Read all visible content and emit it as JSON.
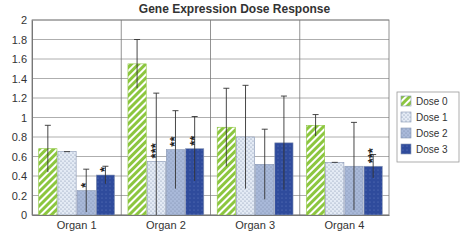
{
  "chart_data": {
    "type": "bar",
    "title": "Gene Expression Dose Response",
    "categories": [
      "Organ 1",
      "Organ 2",
      "Organ 3",
      "Organ 4"
    ],
    "series": [
      {
        "name": "Dose 0",
        "color": "#8cc63f",
        "values": [
          0.68,
          1.55,
          0.9,
          0.92
        ],
        "errors": [
          0.24,
          0.25,
          0.4,
          0.11
        ],
        "significance": [
          null,
          null,
          null,
          null
        ]
      },
      {
        "name": "Dose 1",
        "color": "#e4ebf5",
        "values": [
          0.65,
          0.55,
          0.8,
          0.54
        ],
        "errors": [
          0,
          0.7,
          0.53,
          0
        ],
        "significance": [
          null,
          "***",
          null,
          null
        ]
      },
      {
        "name": "Dose 2",
        "color": "#a9b9d9",
        "values": [
          0.25,
          0.67,
          0.52,
          0.5
        ],
        "errors": [
          0.22,
          0.4,
          0.36,
          0.45
        ],
        "significance": [
          "*",
          "**",
          null,
          null
        ]
      },
      {
        "name": "Dose 3",
        "color": "#2f4b9c",
        "values": [
          0.41,
          0.68,
          0.74,
          0.5
        ],
        "errors": [
          0.09,
          0.33,
          0.48,
          0.12
        ],
        "significance": [
          "*",
          "**",
          null,
          "***"
        ]
      }
    ],
    "ylim": [
      0,
      2
    ],
    "yticks": [
      0,
      0.2,
      0.4,
      0.6,
      0.8,
      1,
      1.2,
      1.4,
      1.6,
      1.8,
      2
    ],
    "grid": true,
    "legend": "right"
  }
}
